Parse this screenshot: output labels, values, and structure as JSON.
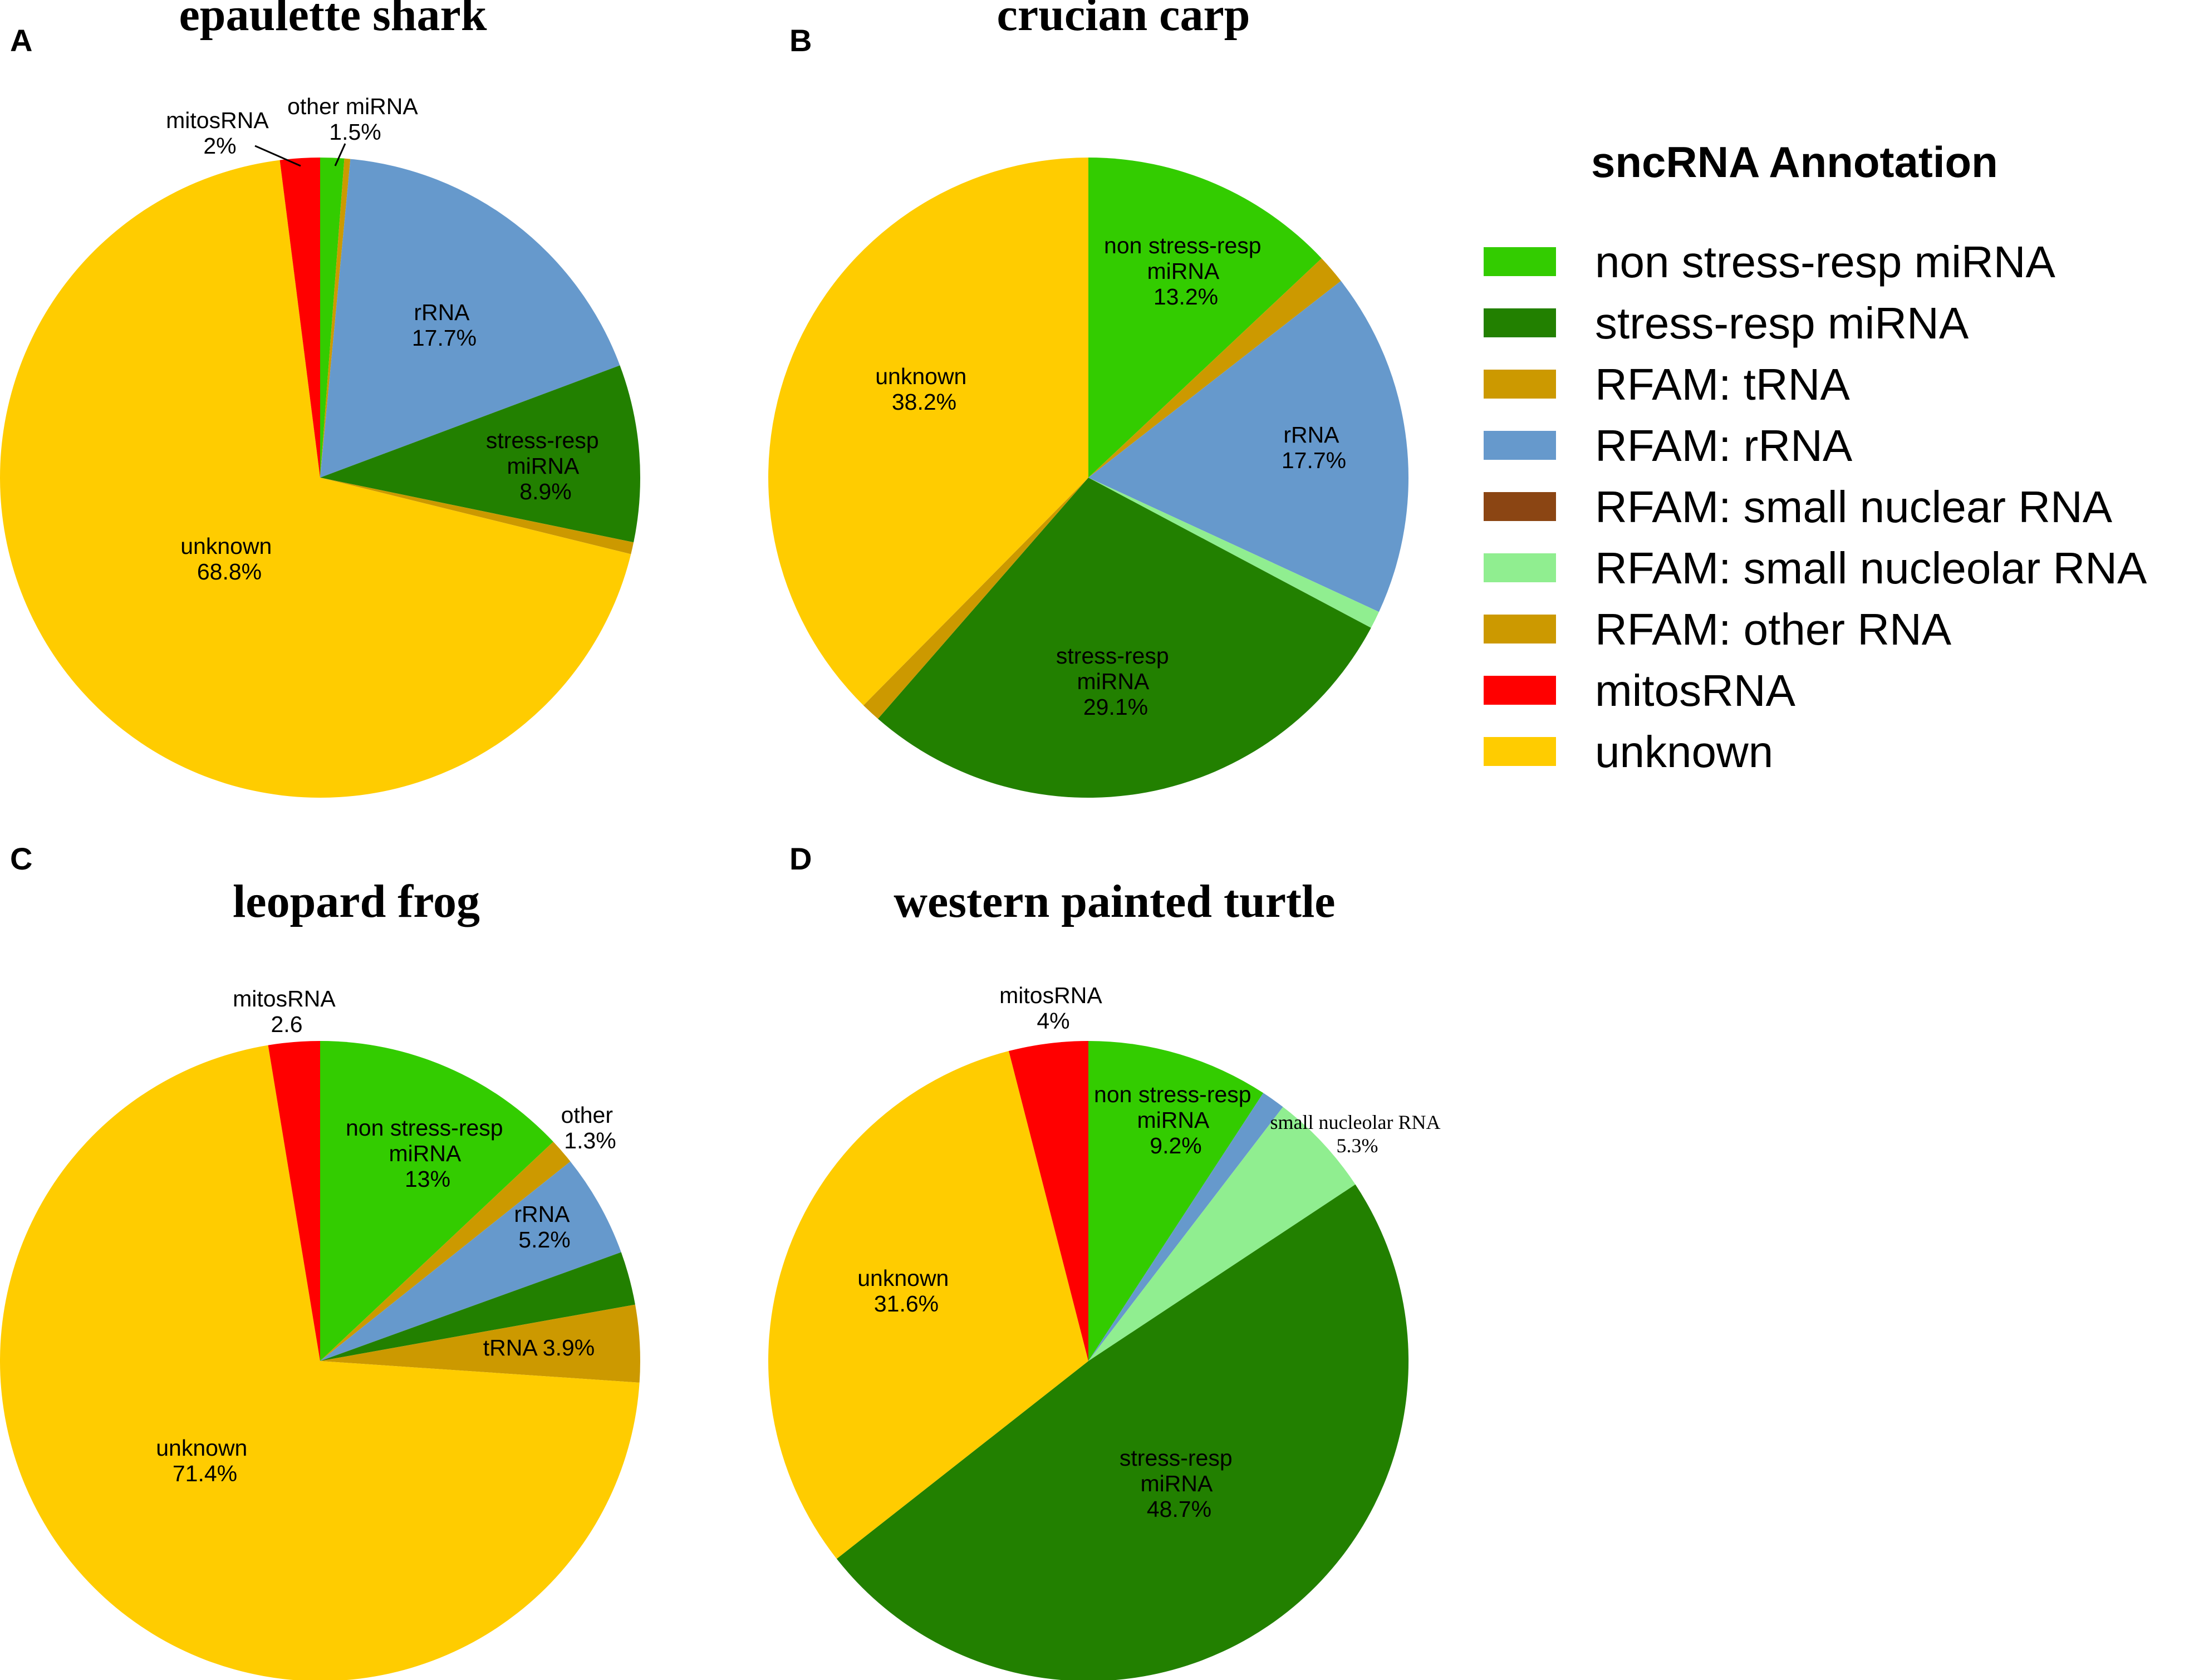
{
  "legend": {
    "title": "sncRNA Annotation",
    "items": [
      {
        "key": "nonstress",
        "label": "non stress-resp miRNA",
        "color": "#33cc00"
      },
      {
        "key": "stress",
        "label": "stress-resp miRNA",
        "color": "#228000"
      },
      {
        "key": "trna",
        "label": "RFAM: tRNA",
        "color": "#cc9900"
      },
      {
        "key": "rrna",
        "label": "RFAM: rRNA",
        "color": "#6699cc"
      },
      {
        "key": "snrna",
        "label": "RFAM: small nuclear RNA",
        "color": "#8b4513"
      },
      {
        "key": "snorna",
        "label": "RFAM: small nucleolar RNA",
        "color": "#90ee90"
      },
      {
        "key": "other",
        "label": "RFAM: other RNA",
        "color": "#cc9900"
      },
      {
        "key": "mito",
        "label": "mitosRNA",
        "color": "#ff0000"
      },
      {
        "key": "unknown",
        "label": "unknown",
        "color": "#ffcc00"
      }
    ]
  },
  "chart_data": [
    {
      "type": "pie",
      "panel": "A",
      "title": "epaulette shark",
      "start_angle_deg": 0,
      "direction": "clockwise",
      "slices": [
        {
          "key": "nonstress",
          "name": "non stress-resp miRNA",
          "value": 1.2
        },
        {
          "key": "trna",
          "name": "tRNA",
          "value": 0.3
        },
        {
          "key": "rrna",
          "name": "rRNA",
          "value": 17.7
        },
        {
          "key": "stress",
          "name": "stress-resp miRNA",
          "value": 8.9
        },
        {
          "key": "other",
          "name": "other RNA",
          "value": 0.6
        },
        {
          "key": "unknown",
          "name": "unknown",
          "value": 68.8
        },
        {
          "key": "mito",
          "name": "mitosRNA",
          "value": 2.0
        }
      ],
      "labels": {
        "rrna": [
          "rRNA",
          "17.7%"
        ],
        "stress": [
          "stress-resp",
          "miRNA",
          "8.9%"
        ],
        "unknown": [
          "unknown",
          "68.8%"
        ],
        "mito": [
          "mitosRNA",
          "2%"
        ],
        "misc": [
          "other miRNA",
          "1.5%"
        ]
      }
    },
    {
      "type": "pie",
      "panel": "B",
      "title": "crucian carp",
      "start_angle_deg": 0,
      "direction": "clockwise",
      "slices": [
        {
          "key": "nonstress",
          "name": "non stress-resp miRNA",
          "value": 13.2
        },
        {
          "key": "trna",
          "name": "tRNA",
          "value": 1.5
        },
        {
          "key": "rrna",
          "name": "rRNA",
          "value": 17.7
        },
        {
          "key": "snorna",
          "name": "small nucleolar RNA",
          "value": 0.9
        },
        {
          "key": "stress",
          "name": "stress-resp miRNA",
          "value": 29.1
        },
        {
          "key": "other",
          "name": "other RNA",
          "value": 1.0
        },
        {
          "key": "unknown",
          "name": "unknown",
          "value": 38.2
        }
      ],
      "labels": {
        "nonstress": [
          "non stress-resp",
          "miRNA",
          "13.2%"
        ],
        "rrna": [
          "rRNA",
          "17.7%"
        ],
        "stress": [
          "stress-resp",
          "miRNA",
          "29.1%"
        ],
        "unknown": [
          "unknown",
          "38.2%"
        ]
      }
    },
    {
      "type": "pie",
      "panel": "C",
      "title": "leopard frog",
      "start_angle_deg": 0,
      "direction": "clockwise",
      "slices": [
        {
          "key": "nonstress",
          "name": "non stress-resp miRNA",
          "value": 13.0
        },
        {
          "key": "other",
          "name": "other RNA",
          "value": 1.3
        },
        {
          "key": "rrna",
          "name": "rRNA",
          "value": 5.2
        },
        {
          "key": "stress",
          "name": "stress-resp miRNA",
          "value": 2.7
        },
        {
          "key": "trna",
          "name": "tRNA",
          "value": 3.9
        },
        {
          "key": "unknown",
          "name": "unknown",
          "value": 71.4
        },
        {
          "key": "mito",
          "name": "mitosRNA",
          "value": 2.6
        }
      ],
      "labels": {
        "nonstress": [
          "non stress-resp",
          "miRNA",
          "13%"
        ],
        "other": [
          "other",
          "1.3%"
        ],
        "rrna": [
          "rRNA",
          "5.2%"
        ],
        "trna": [
          "tRNA 3.9%"
        ],
        "unknown": [
          "unknown",
          "71.4%"
        ],
        "mito": [
          "mitosRNA",
          "2.6"
        ]
      }
    },
    {
      "type": "pie",
      "panel": "D",
      "title": "western painted turtle",
      "start_angle_deg": 0,
      "direction": "clockwise",
      "slices": [
        {
          "key": "nonstress",
          "name": "non stress-resp miRNA",
          "value": 9.2
        },
        {
          "key": "rrna",
          "name": "rRNA",
          "value": 1.2
        },
        {
          "key": "snorna",
          "name": "small nucleolar RNA",
          "value": 5.3
        },
        {
          "key": "stress",
          "name": "stress-resp miRNA",
          "value": 48.7
        },
        {
          "key": "unknown",
          "name": "unknown",
          "value": 31.6
        },
        {
          "key": "mito",
          "name": "mitosRNA",
          "value": 4.0
        }
      ],
      "labels": {
        "nonstress": [
          "non stress-resp",
          "miRNA",
          "9.2%"
        ],
        "snorna": [
          "small nucleolar RNA",
          "5.3%"
        ],
        "stress": [
          "stress-resp",
          "miRNA",
          "48.7%"
        ],
        "unknown": [
          "unknown",
          "31.6%"
        ],
        "mito": [
          "mitosRNA",
          "4%"
        ]
      }
    }
  ]
}
